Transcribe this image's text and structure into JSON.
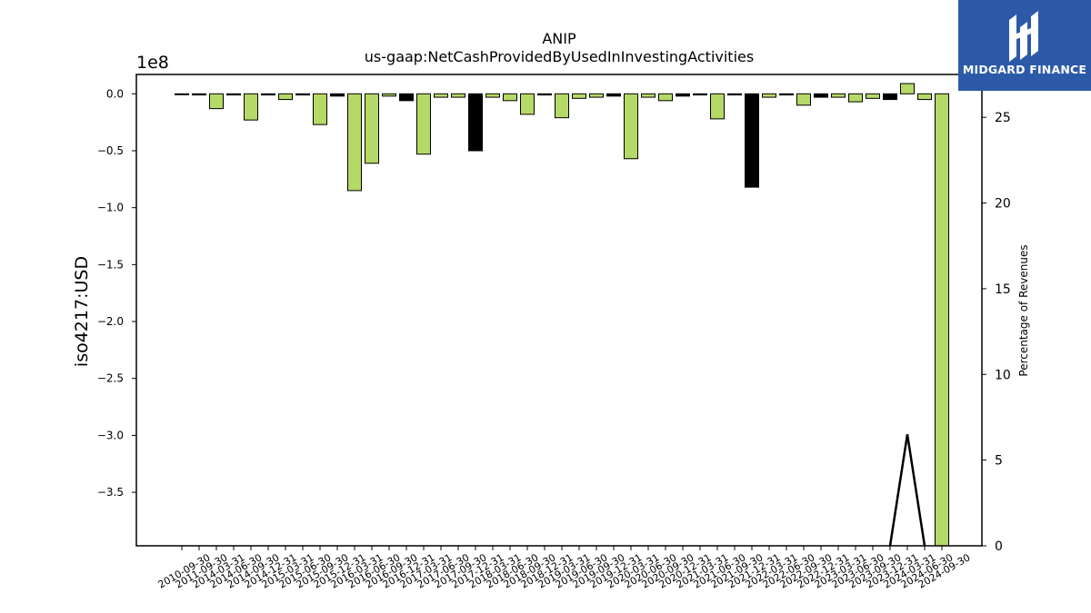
{
  "brand": {
    "name": "MIDGARD FINANCE",
    "color": "#2c5aa8"
  },
  "chart_data": {
    "type": "bar",
    "title": "ANIP",
    "subtitle": "us-gaap:NetCashProvidedByUsedInInvestingActivities",
    "ylabel": "iso4217:USD",
    "y_multiplier_label": "1e8",
    "y2label": "Percentage of Revenues",
    "ylim": [
      -3.97,
      0.17
    ],
    "y2lim": [
      0,
      27.5
    ],
    "yticks": [
      0.0,
      -0.5,
      -1.0,
      -1.5,
      -2.0,
      -2.5,
      -3.0,
      -3.5
    ],
    "y2ticks": [
      0,
      5,
      10,
      15,
      20,
      25
    ],
    "bar_colors": {
      "positive_change": "#b5d966",
      "negative_change": "#000000"
    },
    "categories": [
      "2010-09-30",
      "2011-09-30",
      "2014-03-31",
      "2014-06-30",
      "2014-09-30",
      "2014-12-31",
      "2015-03-31",
      "2015-06-30",
      "2015-09-30",
      "2015-12-31",
      "2016-03-31",
      "2016-06-30",
      "2016-09-30",
      "2016-12-31",
      "2017-03-31",
      "2017-06-30",
      "2017-09-30",
      "2017-12-31",
      "2018-03-31",
      "2018-06-30",
      "2018-09-30",
      "2018-12-31",
      "2019-03-31",
      "2019-06-30",
      "2019-09-30",
      "2019-12-31",
      "2020-03-31",
      "2020-06-30",
      "2020-09-30",
      "2020-12-31",
      "2021-03-31",
      "2021-06-30",
      "2021-09-30",
      "2021-12-31",
      "2022-03-31",
      "2022-06-30",
      "2022-09-30",
      "2022-12-31",
      "2023-03-31",
      "2023-06-30",
      "2023-09-30",
      "2023-12-31",
      "2024-03-31",
      "2024-06-30",
      "2024-09-30"
    ],
    "values": [
      -0.002,
      -0.01,
      -0.13,
      -0.01,
      -0.23,
      -0.01,
      -0.05,
      -0.01,
      -0.27,
      -0.02,
      -0.85,
      -0.61,
      -0.02,
      -0.06,
      -0.53,
      -0.03,
      -0.03,
      -0.5,
      -0.03,
      -0.06,
      -0.18,
      -0.01,
      -0.21,
      -0.04,
      -0.03,
      -0.02,
      -0.57,
      -0.03,
      -0.06,
      -0.02,
      -0.01,
      -0.22,
      -0.01,
      -0.82,
      -0.03,
      -0.01,
      -0.1,
      -0.03,
      -0.03,
      -0.07,
      -0.04,
      -0.05,
      0.09,
      -0.05,
      -3.97
    ],
    "bar_types": [
      "g",
      "k",
      "g",
      "k",
      "g",
      "k",
      "g",
      "k",
      "g",
      "k",
      "g",
      "g",
      "g",
      "k",
      "g",
      "g",
      "g",
      "k",
      "g",
      "g",
      "g",
      "k",
      "g",
      "g",
      "g",
      "k",
      "g",
      "g",
      "g",
      "k",
      "k",
      "g",
      "k",
      "k",
      "g",
      "k",
      "g",
      "k",
      "g",
      "g",
      "g",
      "k",
      "g",
      "g",
      "g"
    ],
    "line_series": {
      "name": "",
      "x_index": [
        41,
        42,
        43
      ],
      "values": [
        0,
        6.5,
        0
      ]
    }
  }
}
